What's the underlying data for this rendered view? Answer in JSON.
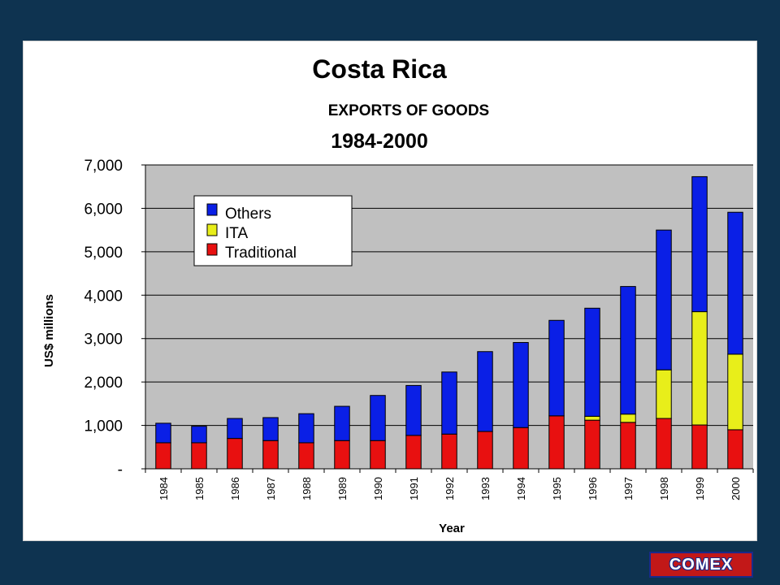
{
  "colors": {
    "background": "#0e3350",
    "plot_area": "#c0c0c0",
    "Others": "#0a1fe6",
    "ITA": "#e8ee1a",
    "Traditional": "#e81010"
  },
  "logo": {
    "text": "COMEX"
  },
  "chart_data": {
    "type": "bar",
    "stacked": true,
    "title": "Costa Rica",
    "subtitle": "EXPORTS OF GOODS",
    "period": "1984-2000",
    "xlabel": "Year",
    "ylabel": "US$ millions",
    "ylim": [
      0,
      7000
    ],
    "yticks": [
      {
        "value": 0,
        "label": "-"
      },
      {
        "value": 1000,
        "label": "1,000"
      },
      {
        "value": 2000,
        "label": "2,000"
      },
      {
        "value": 3000,
        "label": "3,000"
      },
      {
        "value": 4000,
        "label": "4,000"
      },
      {
        "value": 5000,
        "label": "5,000"
      },
      {
        "value": 6000,
        "label": "6,000"
      },
      {
        "value": 7000,
        "label": "7,000"
      }
    ],
    "grid": true,
    "legend_position": "top-left",
    "categories": [
      "1984",
      "1985",
      "1986",
      "1987",
      "1988",
      "1989",
      "1990",
      "1991",
      "1992",
      "1993",
      "1994",
      "1995",
      "1996",
      "1997",
      "1998",
      "1999",
      "2000"
    ],
    "series": [
      {
        "name": "Traditional",
        "values": [
          600,
          600,
          700,
          650,
          600,
          650,
          650,
          770,
          800,
          860,
          950,
          1220,
          1120,
          1070,
          1160,
          1010,
          900
        ]
      },
      {
        "name": "ITA",
        "values": [
          0,
          0,
          0,
          0,
          0,
          0,
          0,
          0,
          0,
          0,
          0,
          0,
          90,
          190,
          1120,
          2610,
          1740
        ]
      },
      {
        "name": "Others",
        "values": [
          450,
          380,
          460,
          530,
          670,
          790,
          1040,
          1150,
          1430,
          1840,
          1960,
          2200,
          2490,
          2940,
          3220,
          3110,
          3270
        ]
      }
    ],
    "legend_order": [
      "Others",
      "ITA",
      "Traditional"
    ]
  }
}
